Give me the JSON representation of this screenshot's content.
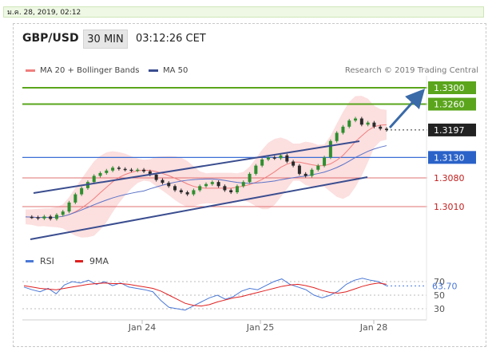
{
  "date": "ม.ค. 28, 2019, 02:12",
  "header": {
    "symbol": "GBP/USD",
    "timeframe": "30 MIN",
    "time": "03:12:26 CET"
  },
  "legend": {
    "ma20": "MA 20 + Bollinger Bands",
    "ma50": "MA 50",
    "research": "Research © 2019 Trading Central",
    "rsi": "RSI",
    "ma9": "9MA"
  },
  "colors": {
    "resistance": "#5aa51c",
    "support": "#e07070",
    "pivot": "#3b6fd6",
    "channel": "#3a4d8f",
    "bollinger": "#f8b8b8",
    "ma20": "#f07e7e",
    "ma50": "#5b73c8",
    "rsi": "#4a78d6",
    "rsi_ma": "#e02020",
    "candle_up": "#2f8f2f",
    "candle_down": "#2b2b2b"
  },
  "chart_data": [
    {
      "type": "candlestick",
      "ylim": [
        1.294,
        1.335
      ],
      "x_ticks": [
        "Jan 24",
        "Jan 25",
        "Jan 28"
      ],
      "levels": [
        {
          "value": 1.33,
          "label": "1.3300",
          "kind": "resistance"
        },
        {
          "value": 1.326,
          "label": "1.3260",
          "kind": "resistance"
        },
        {
          "value": 1.3197,
          "label": "1.3197",
          "kind": "current"
        },
        {
          "value": 1.313,
          "label": "1.3130",
          "kind": "pivot"
        },
        {
          "value": 1.308,
          "label": "1.3080",
          "kind": "support"
        },
        {
          "value": 1.301,
          "label": "1.3010",
          "kind": "support"
        }
      ],
      "price_series": [
        1.2985,
        1.2984,
        1.2981,
        1.2986,
        1.298,
        1.299,
        1.2998,
        1.302,
        1.304,
        1.3055,
        1.307,
        1.3085,
        1.3092,
        1.3098,
        1.3105,
        1.3102,
        1.31,
        1.3098,
        1.31,
        1.3096,
        1.3088,
        1.3075,
        1.3068,
        1.306,
        1.305,
        1.3045,
        1.304,
        1.305,
        1.306,
        1.3065,
        1.307,
        1.306,
        1.305,
        1.3045,
        1.306,
        1.307,
        1.309,
        1.311,
        1.3125,
        1.313,
        1.3128,
        1.3135,
        1.312,
        1.311,
        1.309,
        1.3085,
        1.31,
        1.311,
        1.313,
        1.317,
        1.319,
        1.3205,
        1.322,
        1.3225,
        1.321,
        1.3215,
        1.3205,
        1.32,
        1.3197
      ]
    },
    {
      "type": "line",
      "title": "RSI",
      "ylim": [
        20,
        85
      ],
      "y_ticks": [
        30,
        50,
        70
      ],
      "current_label": "63.70",
      "series": [
        {
          "name": "RSI",
          "values": [
            62,
            58,
            55,
            60,
            52,
            65,
            70,
            68,
            72,
            66,
            70,
            64,
            68,
            62,
            60,
            58,
            55,
            42,
            32,
            30,
            28,
            34,
            40,
            46,
            50,
            44,
            48,
            56,
            60,
            58,
            64,
            70,
            74,
            66,
            62,
            58,
            50,
            46,
            50,
            56,
            66,
            72,
            75,
            72,
            70,
            63.7
          ]
        },
        {
          "name": "9MA",
          "values": [
            64,
            62,
            60,
            59,
            58,
            60,
            62,
            64,
            66,
            67,
            68,
            67,
            67,
            66,
            64,
            62,
            60,
            56,
            50,
            44,
            38,
            35,
            34,
            36,
            40,
            43,
            46,
            48,
            51,
            54,
            57,
            60,
            63,
            65,
            66,
            64,
            61,
            57,
            54,
            53,
            55,
            59,
            63,
            66,
            68,
            66
          ]
        }
      ]
    }
  ]
}
